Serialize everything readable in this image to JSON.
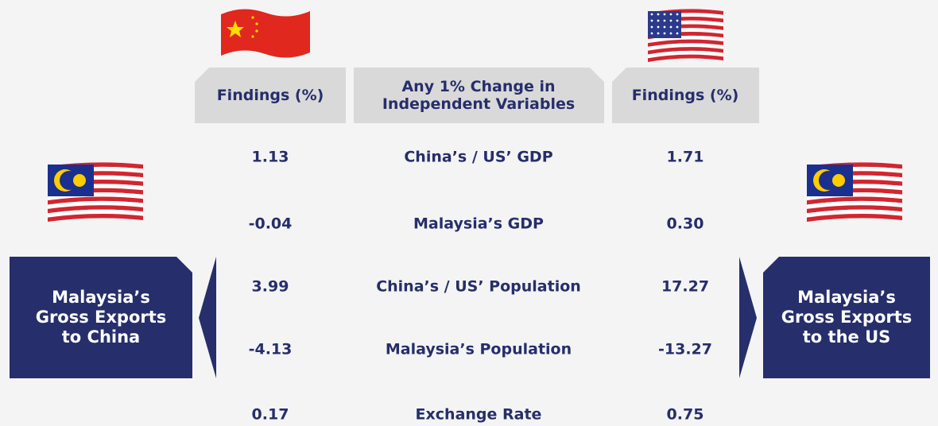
{
  "table": {
    "headers": [
      {
        "lines": [
          "Findings (%)"
        ]
      },
      {
        "lines": [
          "Any 1% Change in",
          "Independent Variables"
        ]
      },
      {
        "lines": [
          "Findings (%)"
        ]
      }
    ],
    "rows": [
      [
        "1.13",
        "China’s / US’ GDP",
        "1.71"
      ],
      [
        "-0.04",
        "Malaysia’s GDP",
        "0.30"
      ],
      [
        "3.99",
        "China’s / US’ Population",
        "17.27"
      ],
      [
        "-4.13",
        "Malaysia’s Population",
        "-13.27"
      ],
      [
        "0.17",
        "Exchange Rate",
        "0.75"
      ]
    ]
  },
  "left_box": {
    "lines": [
      "Malaysia’s",
      "Gross Exports",
      "to China"
    ]
  },
  "right_box": {
    "lines": [
      "Malaysia’s",
      "Gross Exports",
      "to the US"
    ]
  }
}
